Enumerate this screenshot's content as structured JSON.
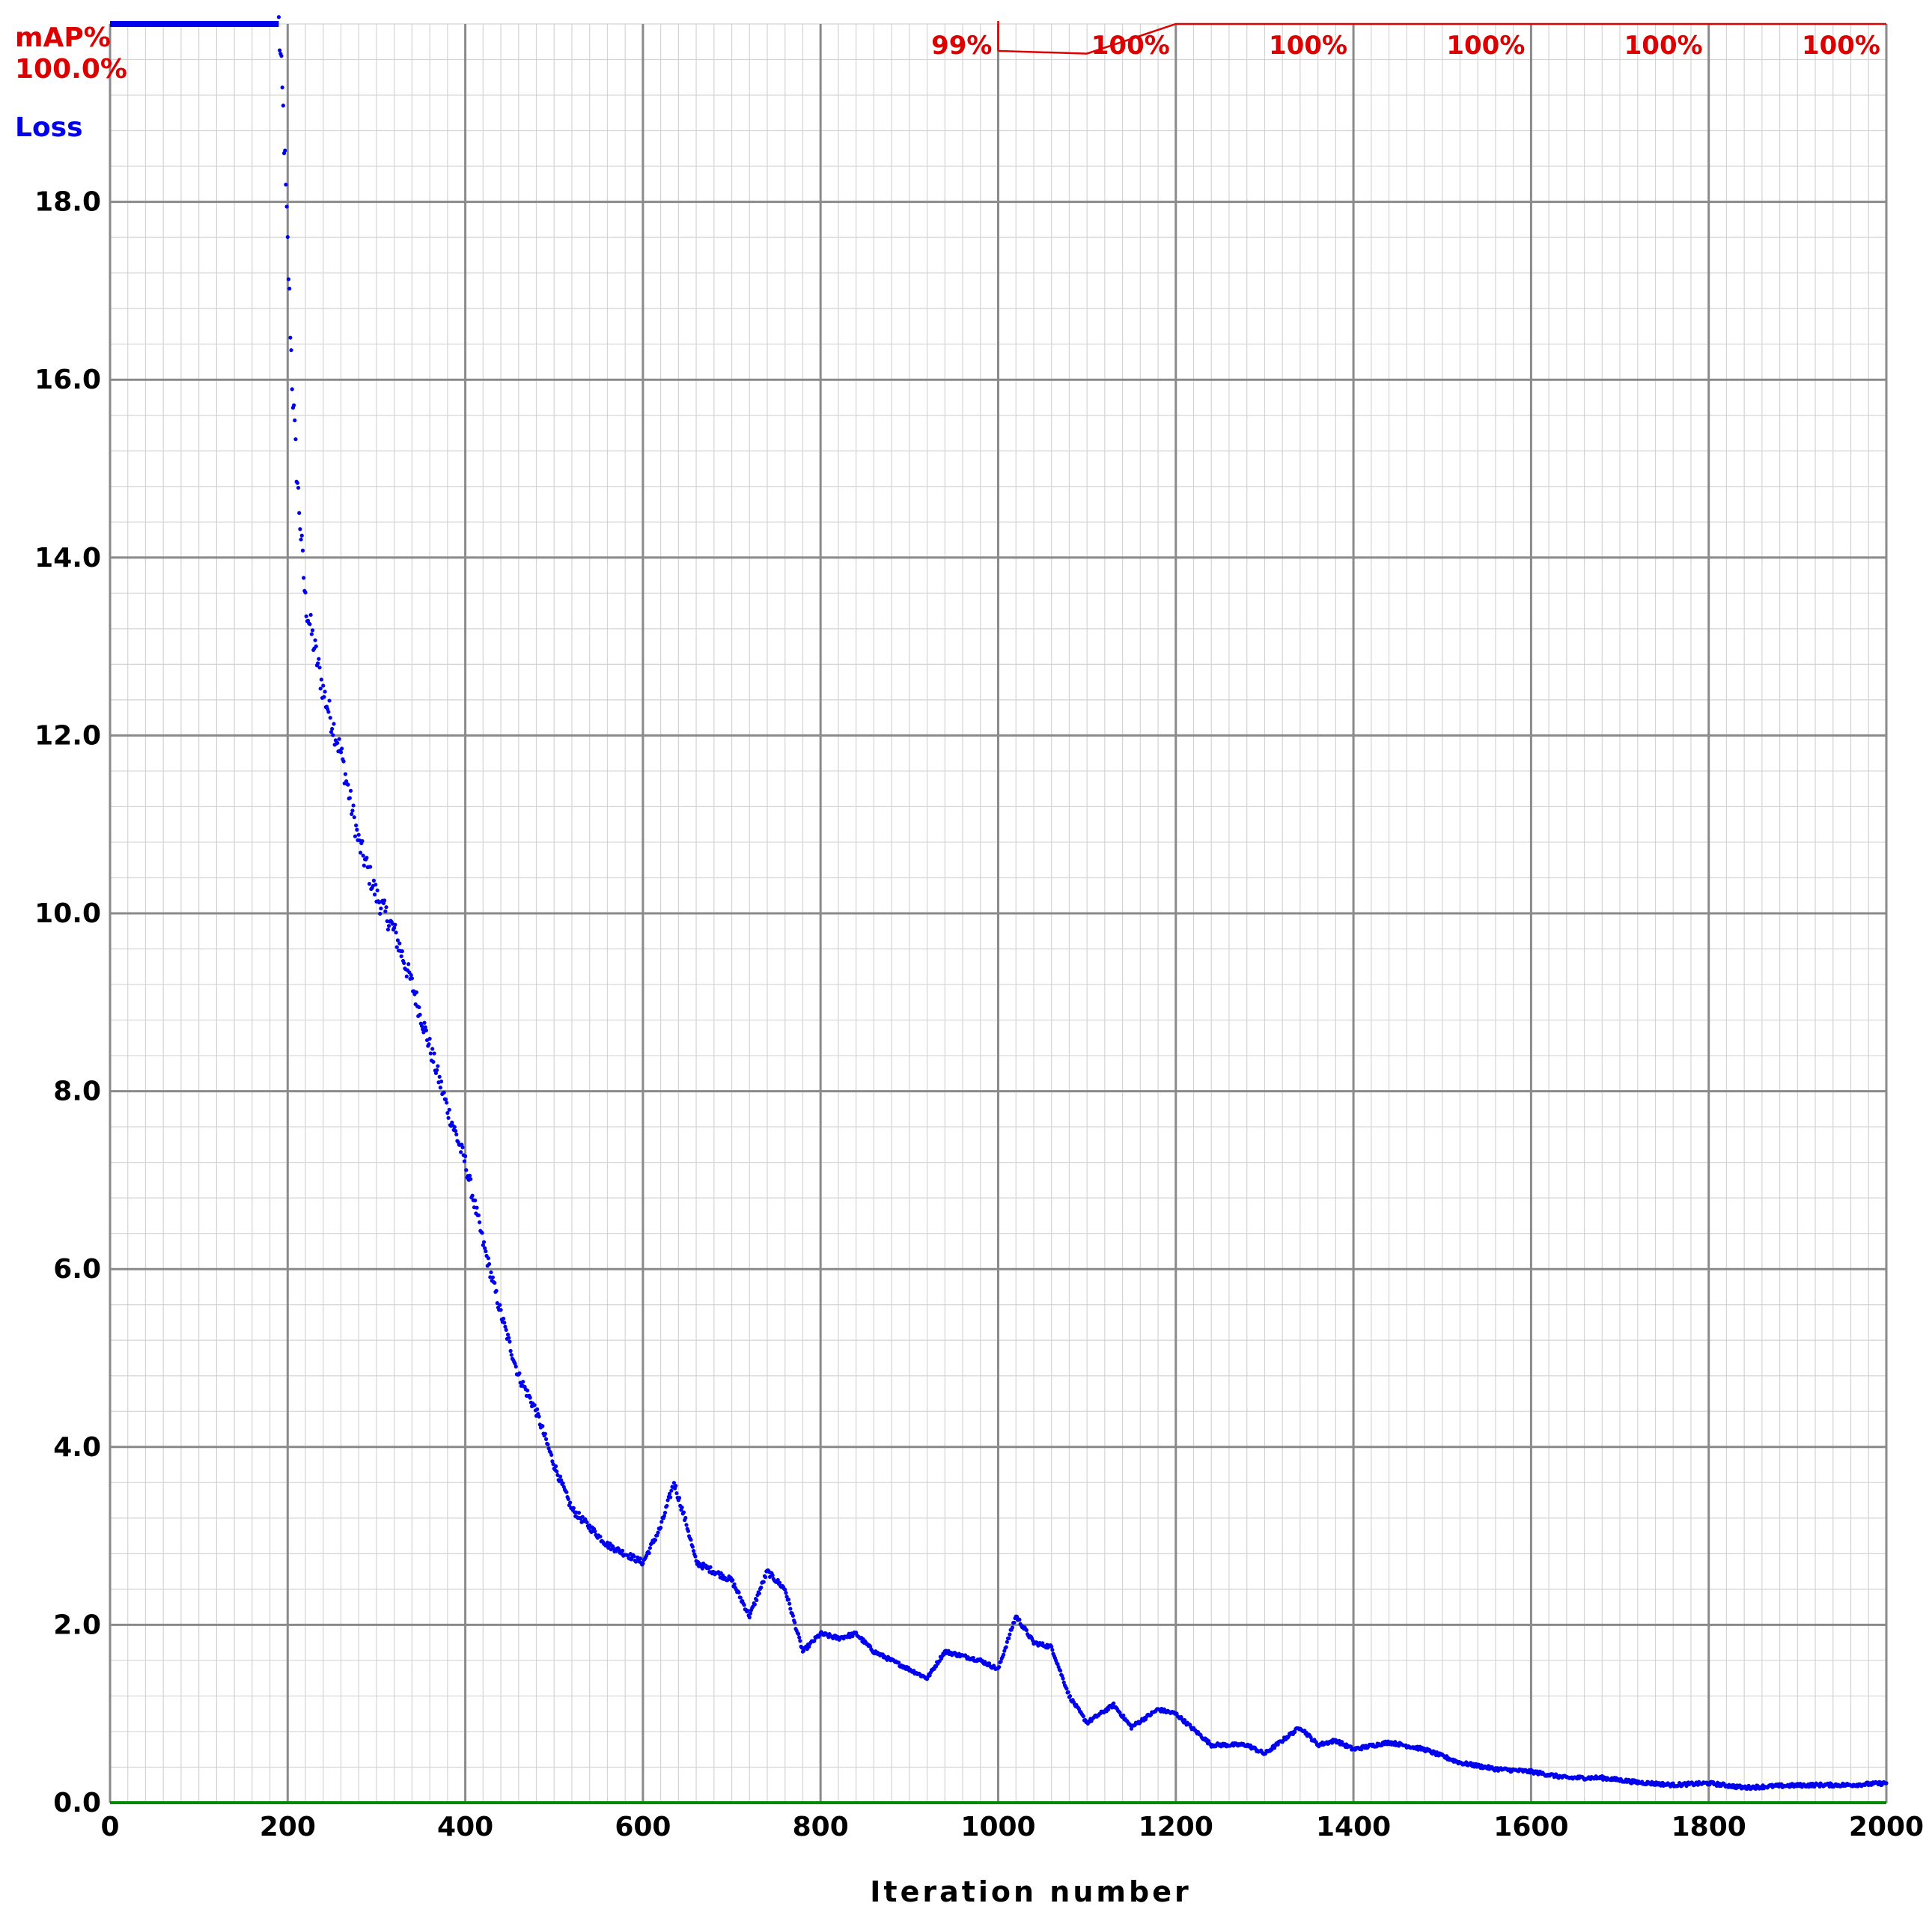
{
  "chart_data": {
    "type": "line",
    "title": "",
    "xlabel": "Iteration number",
    "ylabel": "",
    "xlim": [
      0,
      2000
    ],
    "ylim": [
      0,
      20
    ],
    "grid": true,
    "x_ticks": [
      "0",
      "200",
      "400",
      "600",
      "800",
      "1000",
      "1200",
      "1400",
      "1600",
      "1800",
      "2000"
    ],
    "y_ticks": [
      "0.0",
      "2.0",
      "4.0",
      "6.0",
      "8.0",
      "10.0",
      "12.0",
      "14.0",
      "16.0",
      "18.0"
    ],
    "legend": {
      "map_label": "mAP%",
      "map_value": "100.0%",
      "loss_label": "Loss"
    },
    "map_labels": [
      {
        "x": 1000,
        "text": "99%"
      },
      {
        "x": 1200,
        "text": "100%"
      },
      {
        "x": 1400,
        "text": "100%"
      },
      {
        "x": 1600,
        "text": "100%"
      },
      {
        "x": 1800,
        "text": "100%"
      },
      {
        "x": 2000,
        "text": "100%"
      }
    ],
    "series": [
      {
        "name": "Loss",
        "color": "#0000ee",
        "marker": "dot",
        "points": [
          [
            190,
            20
          ],
          [
            195,
            19
          ],
          [
            200,
            17.5
          ],
          [
            205,
            16
          ],
          [
            210,
            15
          ],
          [
            220,
            13.5
          ],
          [
            230,
            13
          ],
          [
            240,
            12.5
          ],
          [
            260,
            11.8
          ],
          [
            280,
            10.8
          ],
          [
            300,
            10.2
          ],
          [
            320,
            9.8
          ],
          [
            340,
            9.2
          ],
          [
            360,
            8.5
          ],
          [
            380,
            7.8
          ],
          [
            400,
            7.2
          ],
          [
            420,
            6.3
          ],
          [
            440,
            5.5
          ],
          [
            460,
            4.8
          ],
          [
            480,
            4.4
          ],
          [
            500,
            3.8
          ],
          [
            520,
            3.3
          ],
          [
            540,
            3.1
          ],
          [
            560,
            2.9
          ],
          [
            580,
            2.8
          ],
          [
            600,
            2.7
          ],
          [
            620,
            3.1
          ],
          [
            635,
            3.6
          ],
          [
            650,
            3.1
          ],
          [
            660,
            2.7
          ],
          [
            680,
            2.6
          ],
          [
            700,
            2.5
          ],
          [
            720,
            2.1
          ],
          [
            740,
            2.6
          ],
          [
            760,
            2.4
          ],
          [
            780,
            1.7
          ],
          [
            800,
            1.9
          ],
          [
            820,
            1.85
          ],
          [
            840,
            1.9
          ],
          [
            860,
            1.7
          ],
          [
            880,
            1.6
          ],
          [
            900,
            1.5
          ],
          [
            920,
            1.4
          ],
          [
            940,
            1.7
          ],
          [
            960,
            1.65
          ],
          [
            980,
            1.6
          ],
          [
            1000,
            1.5
          ],
          [
            1020,
            2.1
          ],
          [
            1040,
            1.8
          ],
          [
            1060,
            1.75
          ],
          [
            1080,
            1.2
          ],
          [
            1100,
            0.9
          ],
          [
            1130,
            1.1
          ],
          [
            1150,
            0.85
          ],
          [
            1180,
            1.05
          ],
          [
            1200,
            1.0
          ],
          [
            1240,
            0.65
          ],
          [
            1280,
            0.65
          ],
          [
            1300,
            0.55
          ],
          [
            1340,
            0.85
          ],
          [
            1360,
            0.65
          ],
          [
            1380,
            0.7
          ],
          [
            1400,
            0.6
          ],
          [
            1440,
            0.68
          ],
          [
            1480,
            0.6
          ],
          [
            1520,
            0.45
          ],
          [
            1560,
            0.38
          ],
          [
            1600,
            0.35
          ],
          [
            1640,
            0.28
          ],
          [
            1680,
            0.28
          ],
          [
            1720,
            0.23
          ],
          [
            1760,
            0.2
          ],
          [
            1800,
            0.22
          ],
          [
            1840,
            0.17
          ],
          [
            1880,
            0.19
          ],
          [
            1920,
            0.2
          ],
          [
            1960,
            0.2
          ],
          [
            2000,
            0.22
          ]
        ]
      },
      {
        "name": "mAP%",
        "color": "#e00000",
        "y_unit": "percent",
        "points": [
          [
            1000,
            99
          ],
          [
            1100,
            98.9
          ],
          [
            1200,
            100
          ],
          [
            1400,
            100
          ],
          [
            1600,
            100
          ],
          [
            1800,
            100
          ],
          [
            2000,
            100
          ]
        ]
      },
      {
        "name": "",
        "color": "#008800",
        "points": [
          [
            0,
            0
          ],
          [
            2000,
            0
          ]
        ]
      }
    ],
    "initial_flat": {
      "x_from": 0,
      "x_to": 190,
      "y": 20,
      "color": "#0000ee"
    }
  }
}
